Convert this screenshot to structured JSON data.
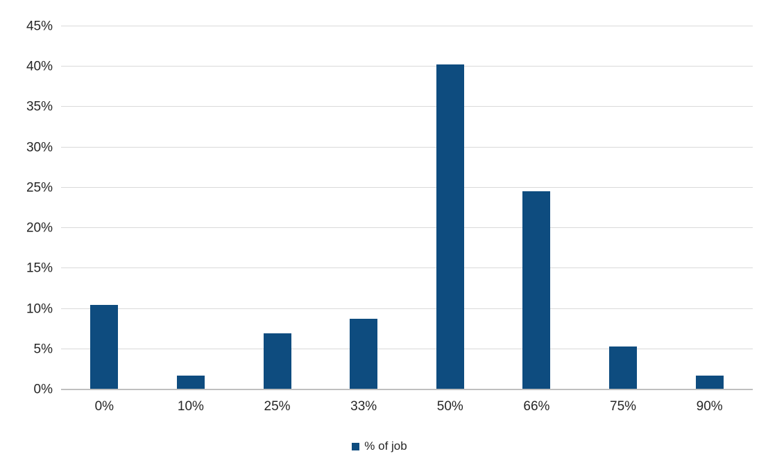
{
  "chart_data": {
    "type": "bar",
    "title": "",
    "xlabel": "",
    "ylabel": "",
    "categories": [
      "0%",
      "10%",
      "25%",
      "33%",
      "50%",
      "66%",
      "75%",
      "90%"
    ],
    "series": [
      {
        "name": "% of job",
        "values": [
          10.5,
          1.7,
          7.0,
          8.8,
          40.3,
          24.6,
          5.3,
          1.7
        ]
      }
    ],
    "ylim": [
      0,
      45
    ],
    "ytick_step": 5,
    "ytick_labels": [
      "0%",
      "5%",
      "10%",
      "15%",
      "20%",
      "25%",
      "30%",
      "35%",
      "40%",
      "45%"
    ],
    "grid": true,
    "legend": {
      "label": "% of job",
      "position": "bottom-center"
    },
    "colors": {
      "bar": "#0e4c7f",
      "gridline": "#d9d9d9",
      "axis_line": "#bfbfbf",
      "text": "#262626",
      "background": "#ffffff"
    }
  }
}
